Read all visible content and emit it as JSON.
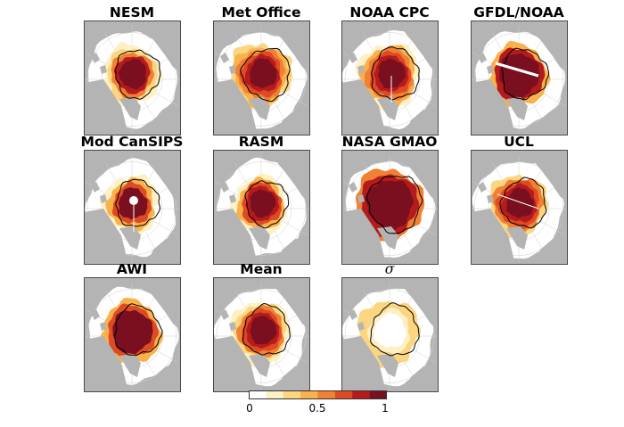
{
  "panels": [
    {
      "title": "NESM",
      "variant": "nesm"
    },
    {
      "title": "Met Office",
      "variant": "met"
    },
    {
      "title": "NOAA CPC",
      "variant": "cpc"
    },
    {
      "title": "GFDL/NOAA",
      "variant": "gfdl"
    },
    {
      "title": "Mod CanSIPS",
      "variant": "cansips"
    },
    {
      "title": "RASM",
      "variant": "rasm"
    },
    {
      "title": "NASA GMAO",
      "variant": "gmao"
    },
    {
      "title": "UCL",
      "variant": "ucl"
    },
    {
      "title": "AWI",
      "variant": "awi"
    },
    {
      "title": "Mean",
      "variant": "mean"
    },
    {
      "title": "σ",
      "variant": "sigma"
    }
  ],
  "colorbar": {
    "colors": [
      "#ffffff",
      "#fdf0c4",
      "#fbd57f",
      "#f9b14b",
      "#f08034",
      "#dd4a23",
      "#b51b1c",
      "#7a0f1f"
    ],
    "tick_labels": [
      "0",
      "0.5",
      "1"
    ],
    "range": [
      0,
      1
    ]
  },
  "colors": {
    "land": "#b4b4b4",
    "ocean": "#ffffff",
    "ice_edge": "#000000",
    "high": "#7a0f1f"
  }
}
